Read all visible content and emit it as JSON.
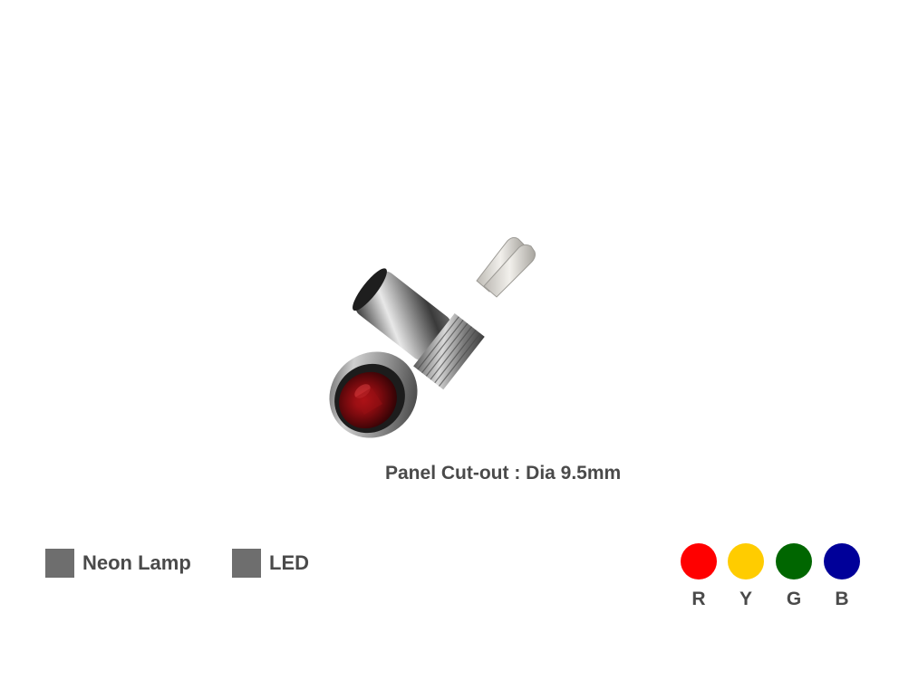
{
  "caption": "Panel Cut-out : Dia 9.5mm",
  "legend": {
    "swatch_color": "#6e6e6e",
    "items": [
      {
        "label": "Neon Lamp"
      },
      {
        "label": "LED"
      }
    ]
  },
  "colors": [
    {
      "letter": "R",
      "hex": "#ff0000"
    },
    {
      "letter": "Y",
      "hex": "#ffcc00"
    },
    {
      "letter": "G",
      "hex": "#006600"
    },
    {
      "letter": "B",
      "hex": "#000099"
    }
  ]
}
